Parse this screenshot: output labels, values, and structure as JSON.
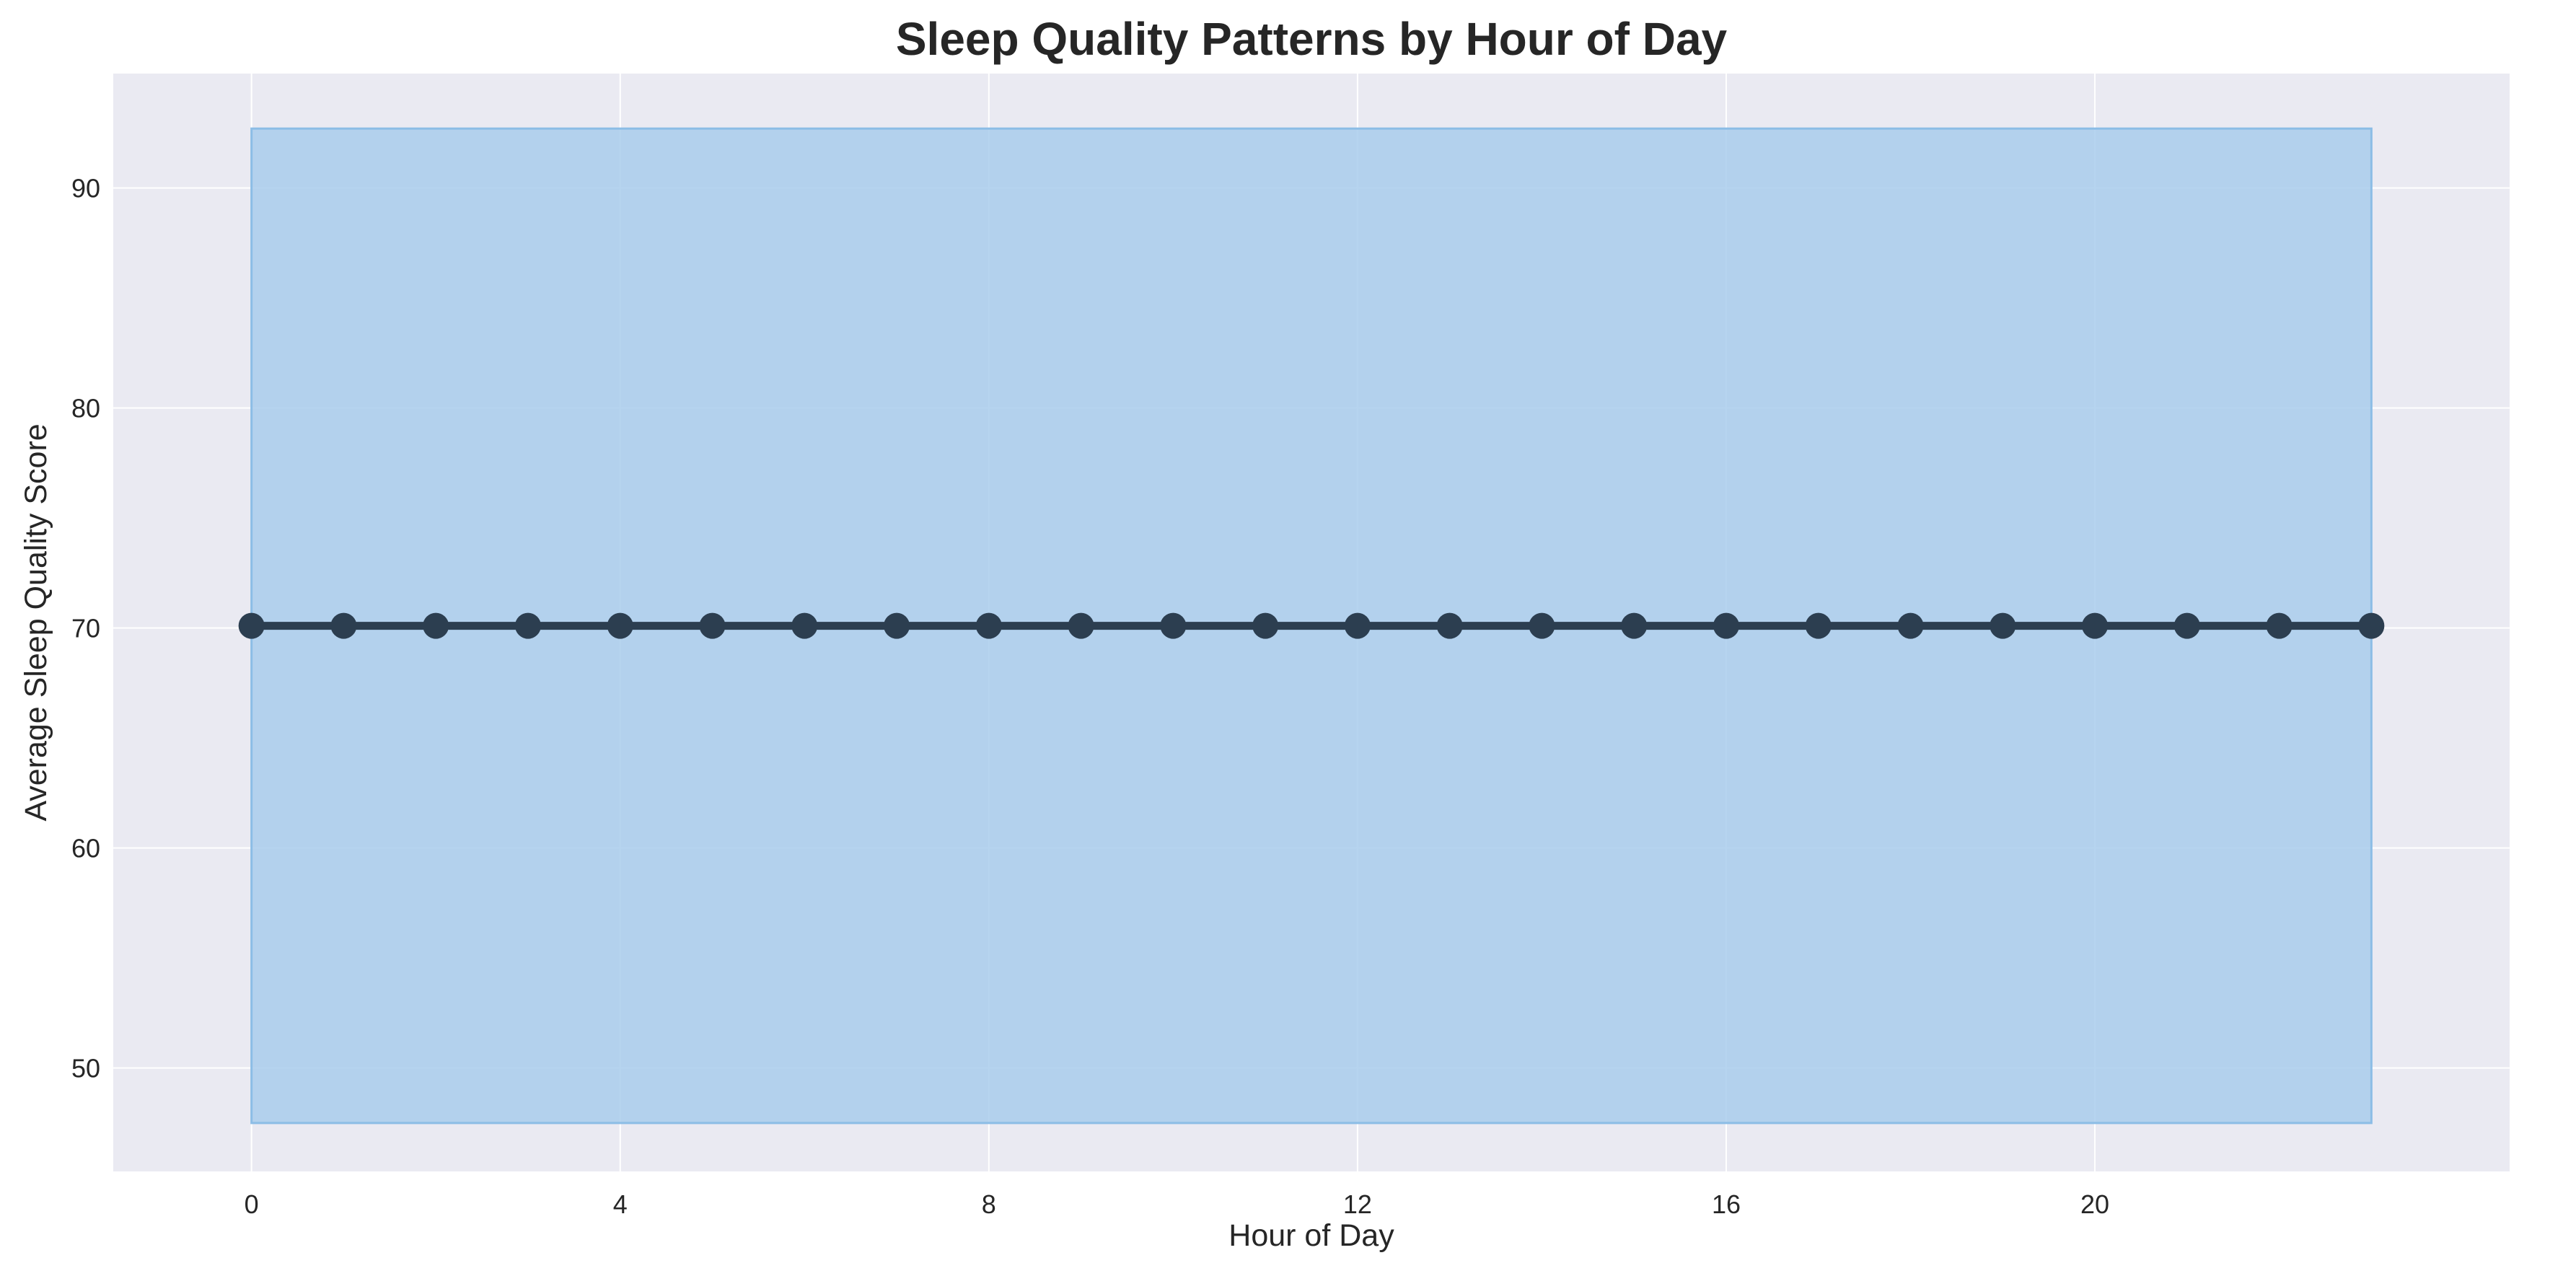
{
  "chart_data": {
    "type": "line",
    "title": "Sleep Quality Patterns by Hour of Day",
    "xlabel": "Hour of Day",
    "ylabel": "Average Sleep Quality Score",
    "xlim": [
      -1.5,
      24.5
    ],
    "ylim": [
      45.3,
      95.2
    ],
    "xticks": [
      0,
      4,
      8,
      12,
      16,
      20
    ],
    "yticks": [
      50,
      60,
      70,
      80,
      90
    ],
    "grid": true,
    "series": [
      {
        "x": [
          0,
          1,
          2,
          3,
          4,
          5,
          6,
          7,
          8,
          9,
          10,
          11,
          12,
          13,
          14,
          15,
          16,
          17,
          18,
          19,
          20,
          21,
          22,
          23
        ],
        "y": [
          70.1,
          70.1,
          70.1,
          70.1,
          70.1,
          70.1,
          70.1,
          70.1,
          70.1,
          70.1,
          70.1,
          70.1,
          70.1,
          70.1,
          70.1,
          70.1,
          70.1,
          70.1,
          70.1,
          70.1,
          70.1,
          70.1,
          70.1,
          70.1
        ]
      }
    ],
    "band": {
      "x": [
        0,
        23
      ],
      "lower": 47.5,
      "upper": 92.7
    },
    "colors": {
      "line": "#2c3e50",
      "band_fill": "#a9cdec",
      "band_edge": "#8cbde6",
      "plot_bg": "#eaeaf2",
      "grid": "#ffffff"
    }
  }
}
